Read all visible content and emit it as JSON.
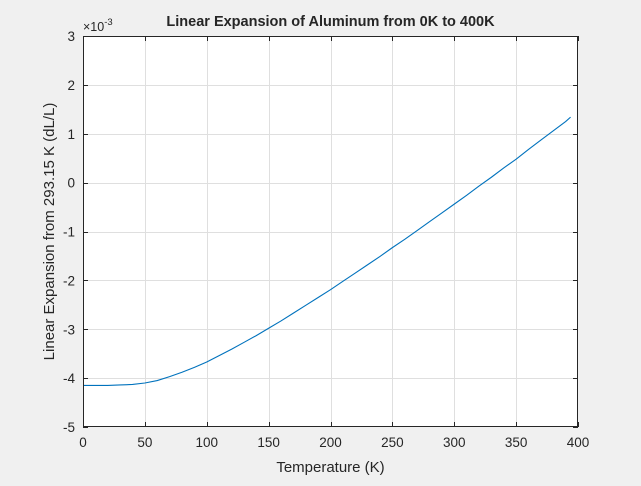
{
  "chart_data": {
    "type": "line",
    "title": "Linear Expansion of Aluminum from 0K to 400K",
    "xlabel": "Temperature (K)",
    "ylabel": "Linear Expansion from 293.15 K (dL/L)",
    "y_exponent_label": "×10",
    "y_exponent_power": "-3",
    "y_scale_factor": 0.001,
    "xlim": [
      0,
      400
    ],
    "ylim": [
      -0.005,
      0.003
    ],
    "xticks": [
      0,
      50,
      100,
      150,
      200,
      250,
      300,
      350,
      400
    ],
    "xtick_labels": [
      "0",
      "50",
      "100",
      "150",
      "200",
      "250",
      "300",
      "350",
      "400"
    ],
    "yticks": [
      -0.005,
      -0.004,
      -0.003,
      -0.002,
      -0.001,
      0,
      0.001,
      0.002,
      0.003
    ],
    "ytick_labels": [
      "-5",
      "-4",
      "-3",
      "-2",
      "-1",
      "0",
      "1",
      "2",
      "3"
    ],
    "grid": true,
    "legend": "none",
    "series": [
      {
        "color": "#0072bd",
        "x": [
          0,
          10,
          20,
          30,
          40,
          50,
          60,
          70,
          80,
          90,
          100,
          110,
          120,
          130,
          140,
          150,
          160,
          170,
          180,
          190,
          200,
          210,
          220,
          230,
          240,
          250,
          260,
          270,
          280,
          290,
          300,
          310,
          320,
          330,
          340,
          350,
          360,
          370,
          380,
          390,
          394
        ],
        "y": [
          -0.00415,
          -0.00415,
          -0.00415,
          -0.00414,
          -0.00413,
          -0.0041,
          -0.00405,
          -0.00397,
          -0.00388,
          -0.00378,
          -0.00367,
          -0.00354,
          -0.00341,
          -0.00327,
          -0.00313,
          -0.00298,
          -0.00283,
          -0.00267,
          -0.00251,
          -0.00235,
          -0.00219,
          -0.00202,
          -0.00185,
          -0.00168,
          -0.00151,
          -0.00133,
          -0.00116,
          -0.00098,
          -0.0008,
          -0.00062,
          -0.00044,
          -0.00026,
          -7e-05,
          0.00011,
          0.0003,
          0.00048,
          0.00068,
          0.00087,
          0.00106,
          0.00125,
          0.00134
        ]
      }
    ]
  }
}
